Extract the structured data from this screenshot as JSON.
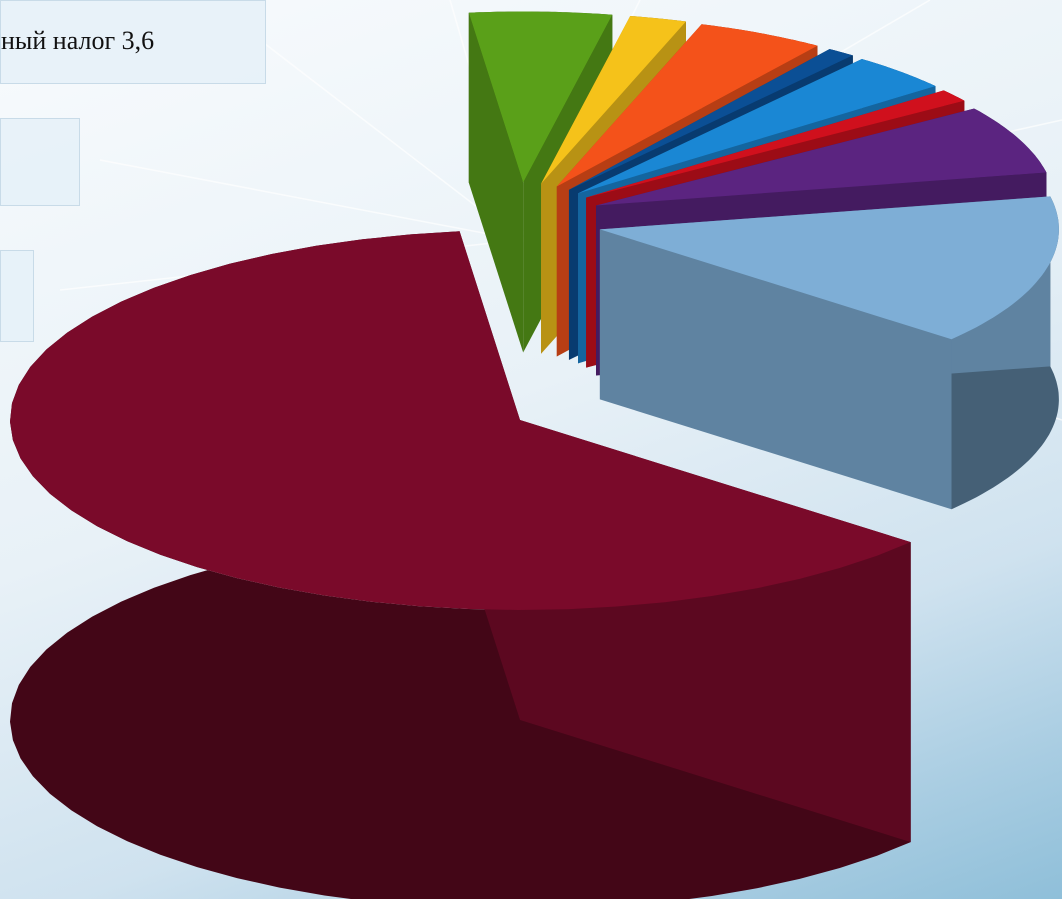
{
  "chart_data": {
    "type": "pie",
    "style": "3d-exploded",
    "legend": "none",
    "callouts": [
      {
        "text": "ный налог 3,6"
      },
      {
        "text": ""
      },
      {
        "text": ""
      }
    ],
    "slices": [
      {
        "value": 62.0,
        "color": "#7a0a2a",
        "exploded": false
      },
      {
        "value": 5.0,
        "color": "#5aa019",
        "exploded": true
      },
      {
        "value": 2.0,
        "color": "#f5c21a",
        "exploded": true
      },
      {
        "value": 4.5,
        "color": "#f4521a",
        "exploded": true
      },
      {
        "value": 1.0,
        "color": "#0b4f95",
        "exploded": true
      },
      {
        "value": 3.6,
        "color": "#1a87d4",
        "exploded": true
      },
      {
        "value": 1.2,
        "color": "#d0101d",
        "exploded": true
      },
      {
        "value": 6.5,
        "color": "#5b2480",
        "exploded": true
      },
      {
        "value": 14.2,
        "color": "#7eaed6",
        "exploded": true
      }
    ]
  }
}
